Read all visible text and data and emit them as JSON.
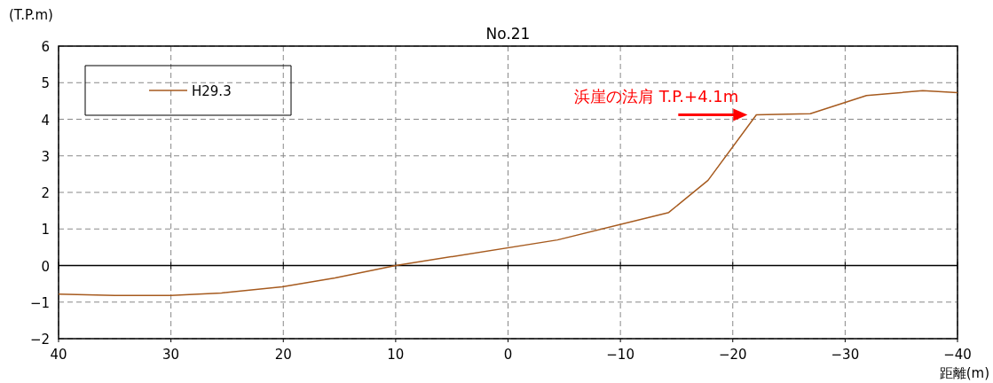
{
  "chart_data": {
    "type": "line",
    "title": "No.21",
    "xlabel": "距離(m)",
    "ylabel": "(T.P.m)",
    "x": [
      40,
      35,
      30,
      25.5,
      20.1,
      15.4,
      10,
      -4.4,
      -14.3,
      -17.8,
      -22.1,
      -26.9,
      -31.9,
      -36.9,
      -40
    ],
    "series": [
      {
        "name": "H29.3",
        "color": "#a65a1e",
        "values": [
          -0.78,
          -0.82,
          -0.82,
          -0.75,
          -0.58,
          -0.34,
          0,
          0.7,
          1.45,
          2.33,
          4.12,
          4.15,
          4.65,
          4.78,
          4.73
        ]
      }
    ],
    "xlim": [
      40,
      -40
    ],
    "xticks": [
      40,
      30,
      20,
      10,
      0,
      -10,
      -20,
      -30,
      -40
    ],
    "ylim": [
      -2,
      6
    ],
    "yticks": [
      -2,
      -1,
      0,
      1,
      2,
      3,
      4,
      5,
      6
    ],
    "grid": true,
    "legend": "top left",
    "marker": "none",
    "line_style": "solid",
    "ref_lines": [
      {
        "axis": "y",
        "value": 0,
        "color": "#000000"
      }
    ],
    "annotations": [
      {
        "text": "浜崖の法肩 T.P.+4.1m",
        "x": -22.1,
        "y": 4.12
      }
    ]
  }
}
